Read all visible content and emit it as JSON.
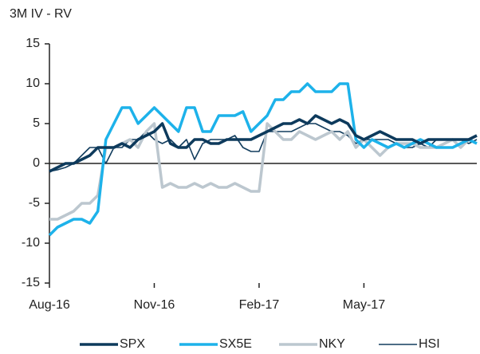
{
  "chart_data": {
    "type": "line",
    "y_label": "3M IV - RV",
    "categories": [
      "Aug-16",
      null,
      null,
      null,
      null,
      null,
      null,
      null,
      null,
      null,
      null,
      null,
      null,
      "Nov-16",
      null,
      null,
      null,
      null,
      null,
      null,
      null,
      null,
      null,
      null,
      null,
      null,
      "Feb-17",
      null,
      null,
      null,
      null,
      null,
      null,
      null,
      null,
      null,
      null,
      null,
      null,
      "May-17",
      null,
      null,
      null,
      null,
      null,
      null,
      null,
      null,
      null,
      null,
      null,
      null,
      null,
      null
    ],
    "series": [
      {
        "name": "SPX",
        "color": "#0d3a5c",
        "width": 3.5,
        "values": [
          -1,
          -0.5,
          0,
          0,
          0.5,
          1,
          2,
          2,
          2,
          2.5,
          2,
          3,
          3.5,
          4,
          5,
          2.5,
          2,
          2,
          3,
          3,
          2.5,
          2.5,
          3,
          3,
          3,
          3,
          3.5,
          4,
          4.5,
          5,
          5,
          5.5,
          5,
          6,
          5.5,
          5,
          5.5,
          5,
          3.5,
          3,
          3.5,
          4,
          3.5,
          3,
          3,
          3,
          2.5,
          3,
          3,
          3,
          3,
          3,
          3,
          3.5
        ]
      },
      {
        "name": "SX5E",
        "color": "#1db2ea",
        "width": 3.5,
        "values": [
          -9,
          -8,
          -7.5,
          -7,
          -7,
          -7.5,
          -6,
          3,
          5,
          7,
          7,
          5,
          6,
          7,
          6,
          5,
          4,
          7,
          7,
          4,
          4,
          6,
          6,
          6,
          6.5,
          4,
          5,
          6,
          8,
          8,
          9,
          9,
          10,
          9,
          9,
          9,
          10,
          10,
          3,
          2,
          3,
          2.5,
          2,
          2.5,
          2,
          2.5,
          3,
          2.5,
          2,
          2,
          2,
          2.5,
          3,
          2.5
        ]
      },
      {
        "name": "NKY",
        "color": "#bcc7cf",
        "width": 3.5,
        "values": [
          -7,
          -7,
          -6.5,
          -6,
          -5,
          -5,
          -4,
          2,
          2,
          2.5,
          3,
          2,
          4,
          5,
          -3,
          -2.5,
          -3,
          -3,
          -2.5,
          -3,
          -2.5,
          -3,
          -3,
          -2.5,
          -3,
          -3.5,
          -3.5,
          5,
          4,
          3,
          3,
          4,
          3.5,
          3,
          3.5,
          4,
          3,
          4,
          2,
          3,
          2,
          1,
          2,
          2.5,
          2.5,
          2.5,
          2,
          2,
          2,
          2.5,
          3,
          2,
          3,
          3.5
        ]
      },
      {
        "name": "HSI",
        "color": "#123d5e",
        "width": 1.6,
        "values": [
          -1,
          -0.8,
          -0.5,
          0,
          1,
          2,
          2,
          0,
          2,
          2,
          3,
          3,
          4,
          3,
          2.5,
          3,
          2,
          3,
          0.5,
          2.5,
          3,
          3,
          3,
          3.5,
          2,
          1.5,
          1.5,
          4,
          4,
          4,
          4,
          4.5,
          5,
          5,
          4.5,
          4,
          4,
          3.5,
          2.5,
          3,
          3,
          3,
          3,
          2.5,
          2,
          2,
          2.5,
          2,
          3,
          3,
          3,
          3,
          2.5,
          3
        ]
      }
    ],
    "ylim": [
      -15,
      15
    ],
    "yticks": [
      -15,
      -10,
      -5,
      0,
      5,
      10,
      15
    ]
  }
}
